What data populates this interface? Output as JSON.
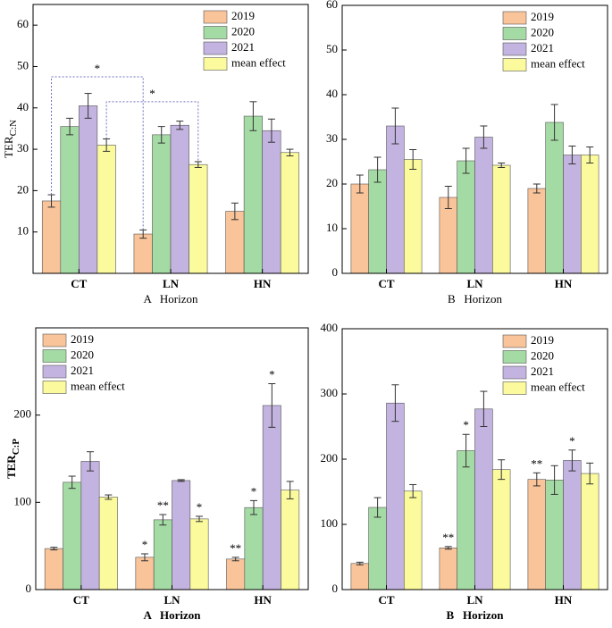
{
  "chart_data": [
    {
      "type": "bar",
      "ylabel": "TER",
      "ylabel_sub": "C:N",
      "xlabel": "A   Horizon",
      "xlabel_bold": false,
      "categories": [
        "CT",
        "LN",
        "HN"
      ],
      "ylim": [
        0,
        65
      ],
      "yticks": [
        10,
        20,
        30,
        40,
        50,
        60
      ],
      "legend": "upper right",
      "series": [
        {
          "name": "2019",
          "color": "#f9c49a",
          "values": [
            17.5,
            9.5,
            15
          ],
          "errors": [
            1.5,
            1,
            2
          ]
        },
        {
          "name": "2020",
          "color": "#a4dba4",
          "values": [
            35.5,
            33.5,
            38
          ],
          "errors": [
            2,
            2,
            3.5
          ]
        },
        {
          "name": "2021",
          "color": "#c3b3e0",
          "values": [
            40.5,
            35.8,
            34.5
          ],
          "errors": [
            3,
            1,
            2.8
          ]
        },
        {
          "name": "mean effect",
          "color": "#fbfa9c",
          "values": [
            31,
            26.3,
            29.2
          ],
          "errors": [
            1.5,
            0.7,
            0.8
          ]
        }
      ],
      "brackets": [
        "*",
        "*"
      ]
    },
    {
      "type": "bar",
      "xlabel": "B   Horizon",
      "xlabel_bold": false,
      "categories": [
        "CT",
        "LN",
        "HN"
      ],
      "ylim": [
        0,
        60
      ],
      "yticks": [
        0,
        10,
        20,
        30,
        40,
        50,
        60
      ],
      "legend": "upper right",
      "series": [
        {
          "name": "2019",
          "color": "#f9c49a",
          "values": [
            20,
            17,
            19
          ],
          "errors": [
            2,
            2.5,
            1
          ]
        },
        {
          "name": "2020",
          "color": "#a4dba4",
          "values": [
            23.2,
            25.2,
            33.8
          ],
          "errors": [
            2.8,
            2.8,
            4
          ]
        },
        {
          "name": "2021",
          "color": "#c3b3e0",
          "values": [
            33,
            30.5,
            26.5
          ],
          "errors": [
            4,
            2.5,
            2
          ]
        },
        {
          "name": "mean effect",
          "color": "#fbfa9c",
          "values": [
            25.5,
            24.2,
            26.5
          ],
          "errors": [
            2.2,
            0.5,
            1.8
          ]
        }
      ]
    },
    {
      "type": "bar",
      "ylabel": "TER",
      "ylabel_sub": "C:P",
      "xlabel": "A   Horizon",
      "xlabel_bold": true,
      "categories": [
        "CT",
        "LN",
        "HN"
      ],
      "ylim": [
        0,
        300
      ],
      "yticks": [
        0,
        100,
        200
      ],
      "legend": "upper left",
      "series": [
        {
          "name": "2019",
          "color": "#f9c49a",
          "values": [
            47,
            37,
            35
          ],
          "errors": [
            1.5,
            4,
            2
          ],
          "stars": [
            null,
            "*",
            "**"
          ]
        },
        {
          "name": "2020",
          "color": "#a4dba4",
          "values": [
            123,
            80,
            94
          ],
          "errors": [
            7,
            6,
            8
          ],
          "stars": [
            null,
            "**",
            "*"
          ]
        },
        {
          "name": "2021",
          "color": "#c3b3e0",
          "values": [
            147,
            125,
            211
          ],
          "errors": [
            11,
            1,
            25
          ],
          "stars": [
            null,
            null,
            "*"
          ]
        },
        {
          "name": "mean effect",
          "color": "#fbfa9c",
          "values": [
            106,
            81,
            114
          ],
          "errors": [
            2.5,
            3,
            10
          ],
          "stars": [
            null,
            "*",
            null
          ]
        }
      ]
    },
    {
      "type": "bar",
      "xlabel": "B   Horizon",
      "xlabel_bold": true,
      "categories": [
        "CT",
        "LN",
        "HN"
      ],
      "ylim": [
        0,
        400
      ],
      "yticks": [
        0,
        100,
        200,
        300,
        400
      ],
      "legend": "upper right",
      "series": [
        {
          "name": "2019",
          "color": "#f9c49a",
          "values": [
            40,
            64,
            169
          ],
          "errors": [
            2,
            2,
            10
          ],
          "stars": [
            null,
            "**",
            "**"
          ]
        },
        {
          "name": "2020",
          "color": "#a4dba4",
          "values": [
            126,
            213,
            168
          ],
          "errors": [
            15,
            25,
            22
          ],
          "stars": [
            null,
            "*",
            null
          ]
        },
        {
          "name": "2021",
          "color": "#c3b3e0",
          "values": [
            286,
            277,
            198
          ],
          "errors": [
            28,
            27,
            16
          ],
          "stars": [
            null,
            null,
            "*"
          ]
        },
        {
          "name": "mean effect",
          "color": "#fbfa9c",
          "values": [
            151,
            184,
            178
          ],
          "errors": [
            10,
            15,
            16
          ],
          "stars": [
            null,
            null,
            null
          ]
        }
      ]
    }
  ]
}
